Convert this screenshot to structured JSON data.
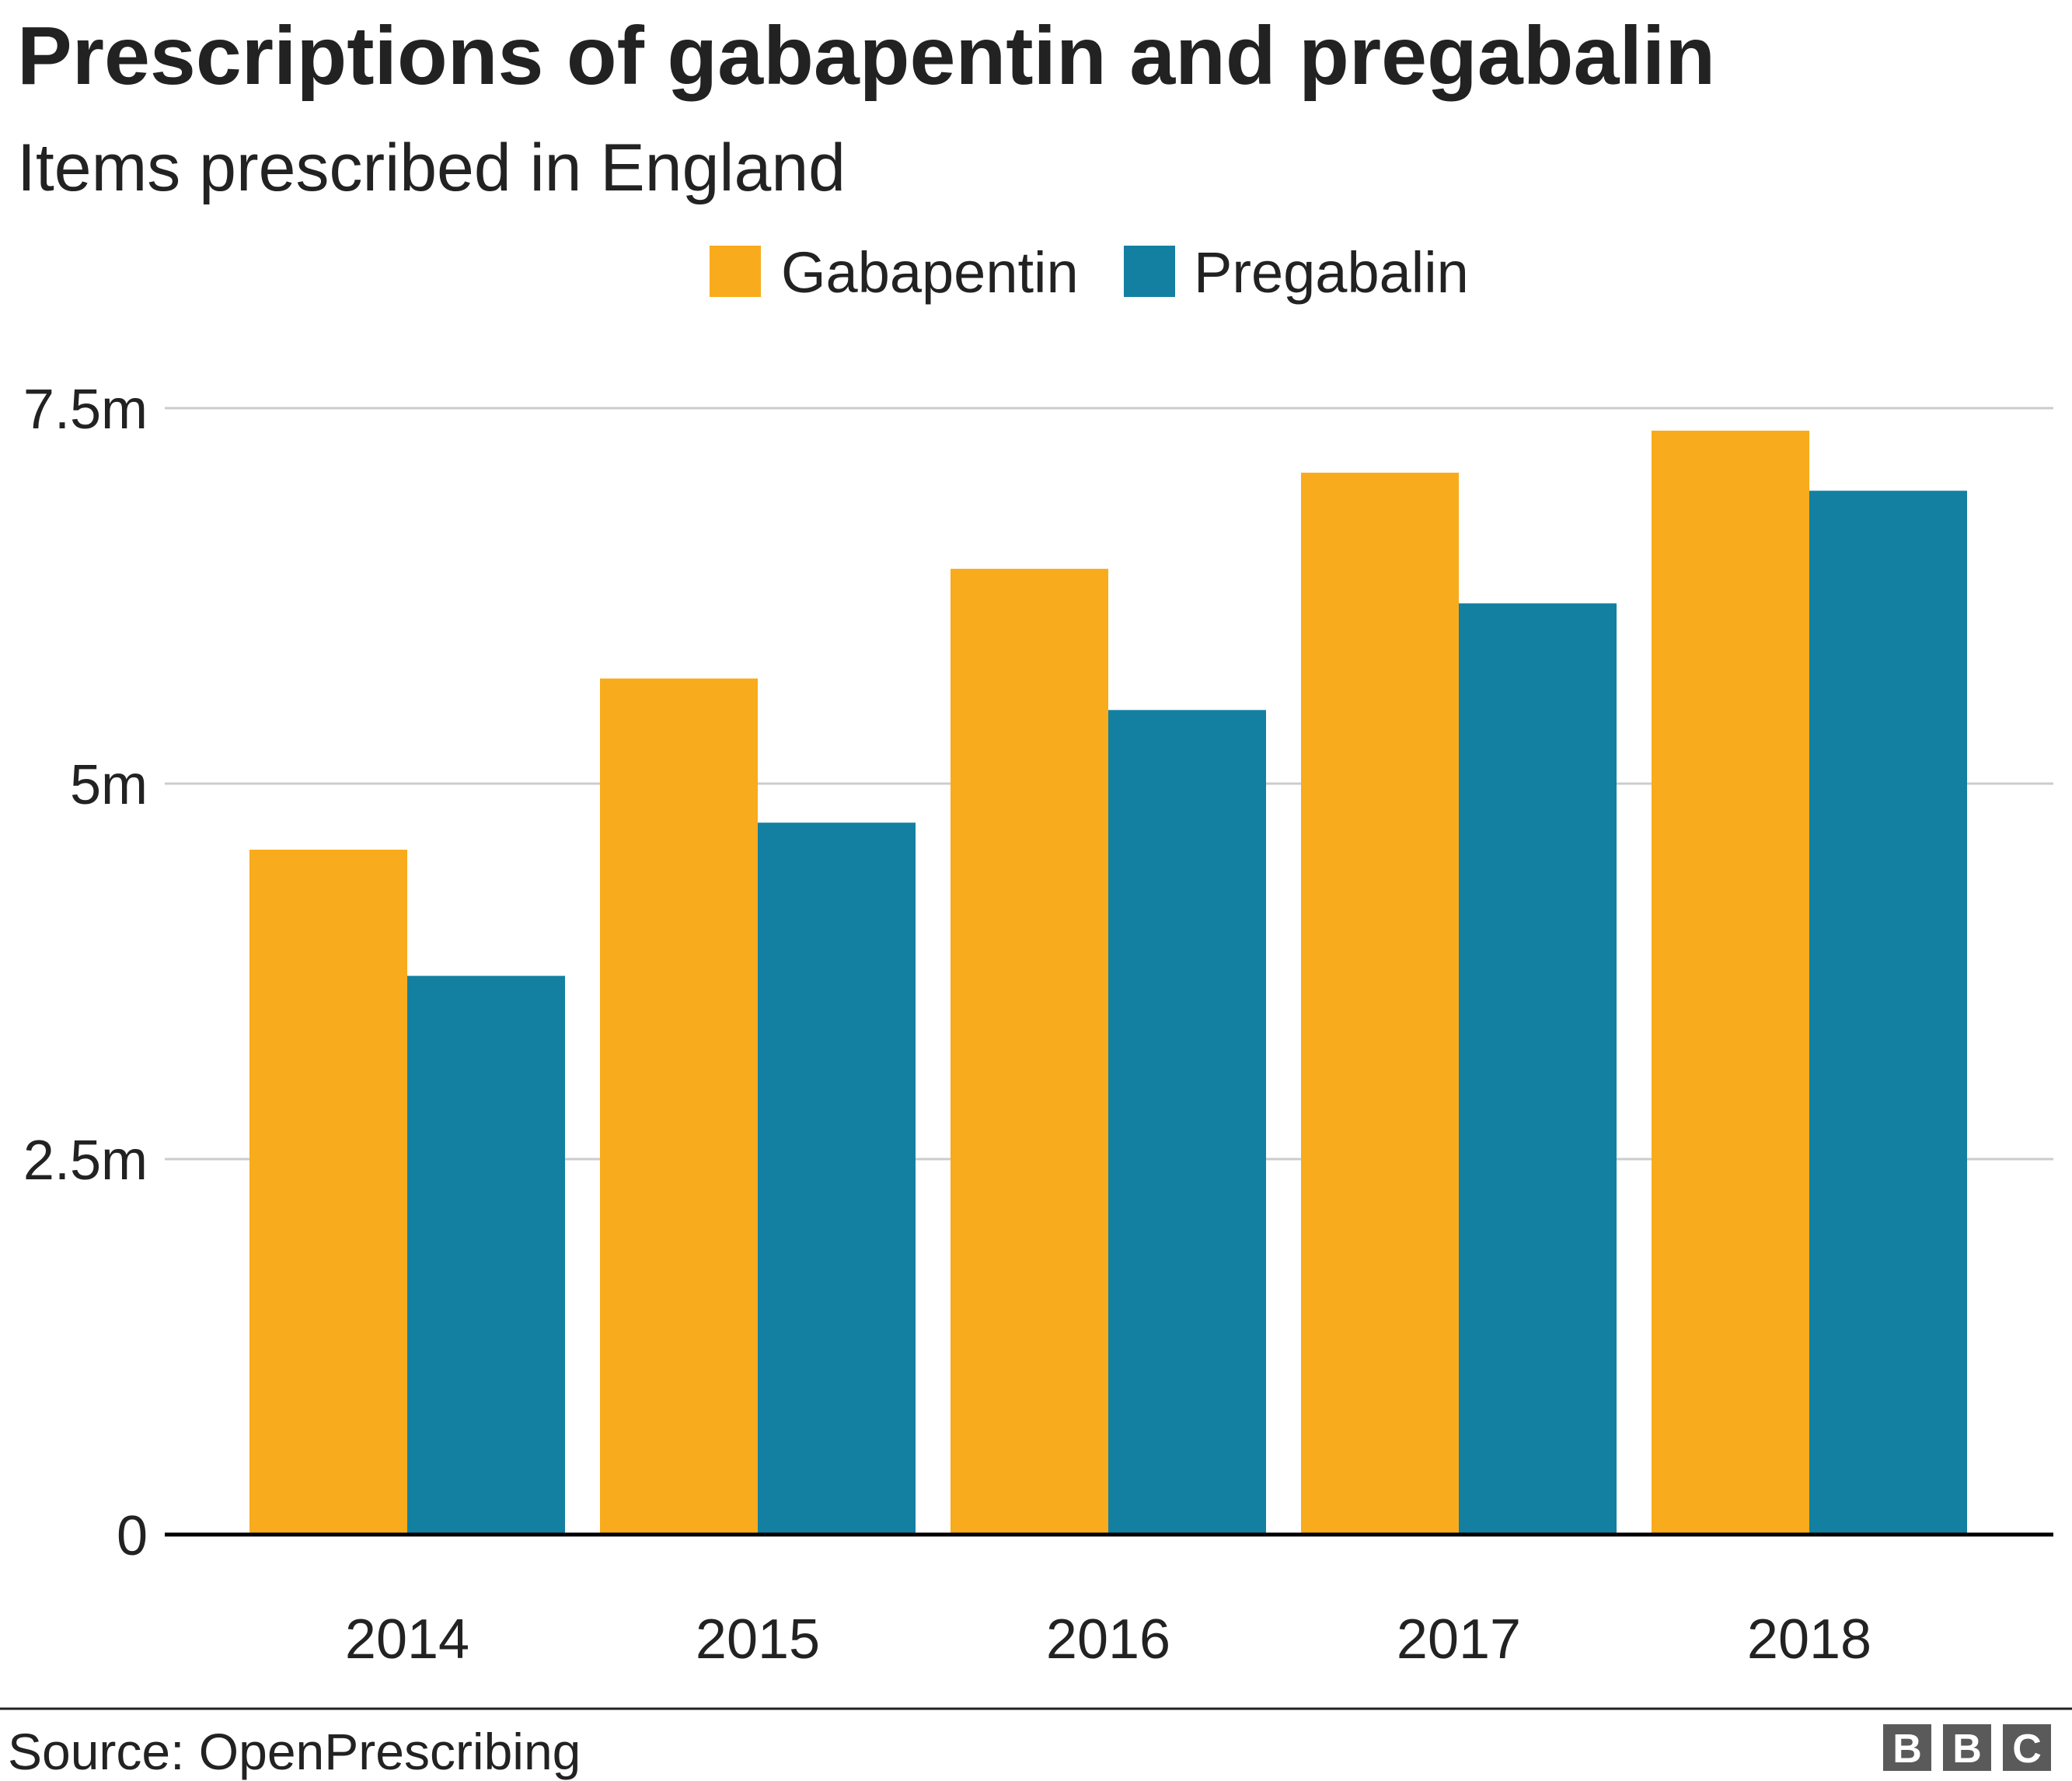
{
  "chart_data": {
    "type": "bar",
    "title": "Prescriptions of gabapentin and pregabalin",
    "subtitle": "Items prescribed in England",
    "categories": [
      "2014",
      "2015",
      "2016",
      "2017",
      "2018"
    ],
    "series": [
      {
        "name": "Gabapentin",
        "color": "#f8ab1c",
        "values": [
          4.56,
          5.7,
          6.43,
          7.07,
          7.35
        ]
      },
      {
        "name": "Pregabalin",
        "color": "#1380a1",
        "values": [
          3.72,
          4.74,
          5.49,
          6.2,
          6.95
        ]
      }
    ],
    "units": "millions of items",
    "ylim": [
      0,
      7.5
    ],
    "yticks": [
      {
        "value": 0,
        "label": "0"
      },
      {
        "value": 2.5,
        "label": "2.5m"
      },
      {
        "value": 5,
        "label": "5m"
      },
      {
        "value": 7.5,
        "label": "7.5m"
      }
    ],
    "grid": true,
    "legend_position": "top-center",
    "xlabel": "",
    "ylabel": ""
  },
  "footer": {
    "source": "Source: OpenPrescribing",
    "logo": "BBC"
  }
}
